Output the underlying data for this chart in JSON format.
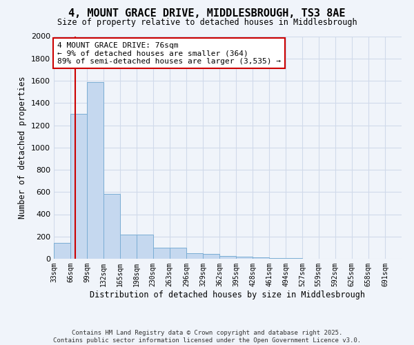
{
  "title": "4, MOUNT GRACE DRIVE, MIDDLESBROUGH, TS3 8AE",
  "subtitle": "Size of property relative to detached houses in Middlesbrough",
  "xlabel": "Distribution of detached houses by size in Middlesbrough",
  "ylabel": "Number of detached properties",
  "bin_edges": [
    33,
    66,
    99,
    132,
    165,
    198,
    230,
    263,
    296,
    329,
    362,
    395,
    428,
    461,
    494,
    527,
    559,
    592,
    625,
    658,
    691
  ],
  "bar_heights": [
    140,
    1300,
    1590,
    580,
    215,
    215,
    100,
    100,
    50,
    45,
    25,
    20,
    15,
    5,
    4,
    3,
    2,
    1,
    1,
    1
  ],
  "bar_color": "#c5d8ef",
  "bar_edgecolor": "#7aadd4",
  "bg_color": "#f0f4fa",
  "grid_color": "#d0daea",
  "vline_x": 76,
  "vline_color": "#cc0000",
  "annotation_text": "4 MOUNT GRACE DRIVE: 76sqm\n← 9% of detached houses are smaller (364)\n89% of semi-detached houses are larger (3,535) →",
  "annotation_box_facecolor": "#ffffff",
  "annotation_box_edgecolor": "#cc0000",
  "ylim": [
    0,
    2000
  ],
  "yticks": [
    0,
    200,
    400,
    600,
    800,
    1000,
    1200,
    1400,
    1600,
    1800,
    2000
  ],
  "footnote1": "Contains HM Land Registry data © Crown copyright and database right 2025.",
  "footnote2": "Contains public sector information licensed under the Open Government Licence v3.0."
}
